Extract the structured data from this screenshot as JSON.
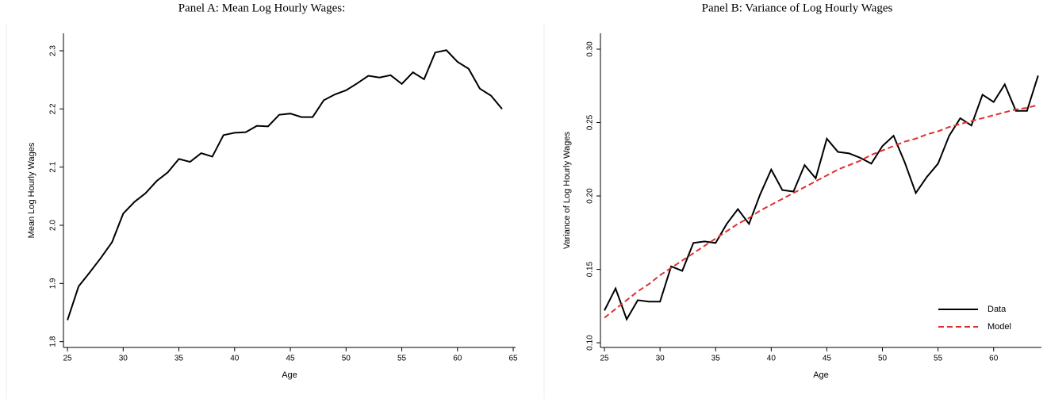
{
  "chart_data": [
    {
      "type": "line",
      "title": "Panel A: Mean Log Hourly Wages:",
      "x_label": "Age",
      "y_label": "Mean Log Hourly Wages",
      "x": [
        25,
        26,
        27,
        28,
        29,
        30,
        31,
        32,
        33,
        34,
        35,
        36,
        37,
        38,
        39,
        40,
        41,
        42,
        43,
        44,
        45,
        46,
        47,
        48,
        49,
        50,
        51,
        52,
        53,
        54,
        55,
        56,
        57,
        58,
        59,
        60,
        61,
        62,
        63,
        64
      ],
      "series": [
        {
          "name": null,
          "color": "#000000",
          "linestyle": "solid",
          "values": [
            1.837,
            1.895,
            1.919,
            1.944,
            1.971,
            2.02,
            2.04,
            2.055,
            2.076,
            2.091,
            2.114,
            2.109,
            2.124,
            2.118,
            2.155,
            2.159,
            2.16,
            2.171,
            2.17,
            2.19,
            2.192,
            2.186,
            2.186,
            2.215,
            2.225,
            2.232,
            2.244,
            2.257,
            2.254,
            2.258,
            2.243,
            2.263,
            2.251,
            2.297,
            2.301,
            2.281,
            2.269,
            2.235,
            2.223,
            2.2
          ]
        }
      ],
      "xlim": [
        24.64,
        65.21
      ],
      "xticks": [
        25,
        30,
        35,
        40,
        45,
        50,
        55,
        60,
        65
      ],
      "ylim": [
        1.79,
        2.33
      ],
      "yticks": [
        1.8,
        1.9,
        {
          "value": 2,
          "label": "2.0"
        },
        2.1,
        2.2,
        2.3
      ],
      "grid": false
    },
    {
      "type": "line",
      "title": "Panel B: Variance of Log Hourly Wages",
      "x_label": "Age",
      "y_label": "Variance of Log Hourly Wages",
      "x": [
        25,
        26,
        27,
        28,
        29,
        30,
        31,
        32,
        33,
        34,
        35,
        36,
        37,
        38,
        39,
        40,
        41,
        42,
        43,
        44,
        45,
        46,
        47,
        48,
        49,
        50,
        51,
        52,
        53,
        54,
        55,
        56,
        57,
        58,
        59,
        60,
        61,
        62,
        63,
        64
      ],
      "series": [
        {
          "name": "Data",
          "color": "#000000",
          "linestyle": "solid",
          "values": [
            0.122,
            0.137,
            0.116,
            0.129,
            0.128,
            0.128,
            0.152,
            0.149,
            0.168,
            0.169,
            0.168,
            0.181,
            0.191,
            0.181,
            0.201,
            0.218,
            0.204,
            0.203,
            0.221,
            0.212,
            0.239,
            0.23,
            0.229,
            0.226,
            0.222,
            0.234,
            0.241,
            0.223,
            0.202,
            0.213,
            0.222,
            0.241,
            0.253,
            0.248,
            0.269,
            0.264,
            0.276,
            0.258,
            0.258,
            0.282
          ]
        },
        {
          "name": "Model",
          "color": "#e03030",
          "linestyle": "dashed",
          "values": [
            0.117,
            0.123,
            0.129,
            0.135,
            0.14,
            0.146,
            0.151,
            0.156,
            0.161,
            0.166,
            0.171,
            0.176,
            0.181,
            0.185,
            0.19,
            0.194,
            0.198,
            0.202,
            0.206,
            0.21,
            0.214,
            0.218,
            0.221,
            0.224,
            0.228,
            0.231,
            0.234,
            0.237,
            0.239,
            0.242,
            0.244,
            0.247,
            0.249,
            0.251,
            0.253,
            0.255,
            0.257,
            0.259,
            0.26,
            0.262
          ]
        }
      ],
      "xlim": [
        24.64,
        64.3
      ],
      "xticks": [
        25,
        30,
        35,
        40,
        45,
        50,
        55,
        60
      ],
      "ylim": [
        0.0968,
        0.3108
      ],
      "yticks": [
        {
          "value": 0.1,
          "label": "0.10"
        },
        0.15,
        {
          "value": 0.2,
          "label": "0.20"
        },
        0.25,
        {
          "value": 0.3,
          "label": "0.30"
        }
      ],
      "grid": false,
      "legend": "lower right"
    }
  ]
}
